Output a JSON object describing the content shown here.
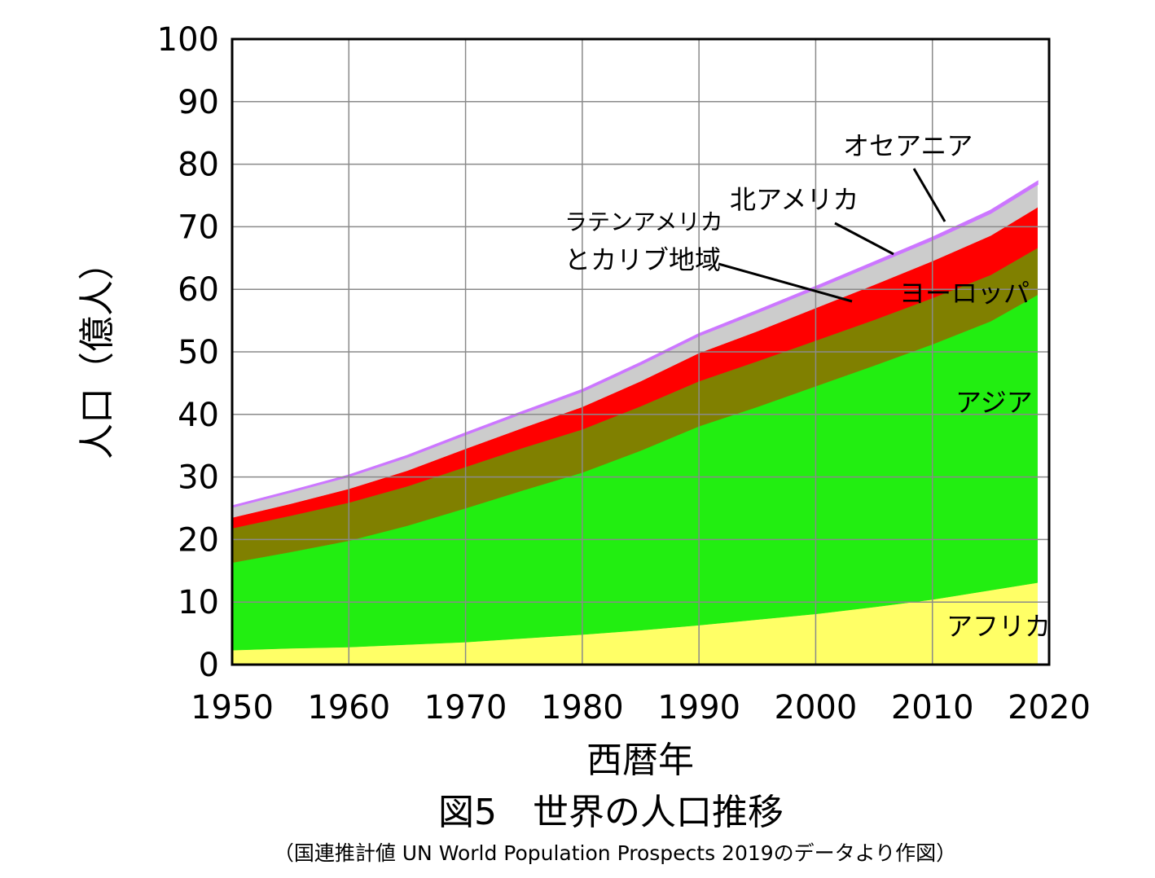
{
  "chart_data": {
    "type": "area",
    "stacked": true,
    "title": "図5　世界の人口推移",
    "subtitle": "（国連推計値 UN World Population Prospects 2019のデータより作図）",
    "xlabel": "西暦年",
    "ylabel": "人口（億人）",
    "xlim": [
      1950,
      2020
    ],
    "ylim": [
      0,
      100
    ],
    "xticks": [
      1950,
      1960,
      1970,
      1980,
      1990,
      2000,
      2010,
      2020
    ],
    "yticks": [
      0,
      10,
      20,
      30,
      40,
      50,
      60,
      70,
      80,
      90,
      100
    ],
    "grid": true,
    "x": [
      1950,
      1955,
      1960,
      1965,
      1970,
      1975,
      1980,
      1985,
      1990,
      1995,
      2000,
      2005,
      2010,
      2015,
      2019
    ],
    "series": [
      {
        "name": "アフリカ",
        "color": "#ffff66",
        "values": [
          2.3,
          2.6,
          2.8,
          3.2,
          3.6,
          4.2,
          4.8,
          5.5,
          6.3,
          7.2,
          8.1,
          9.2,
          10.4,
          11.9,
          13.1
        ]
      },
      {
        "name": "アジア",
        "color": "#22ee11",
        "values": [
          14.0,
          15.4,
          17.0,
          19.0,
          21.4,
          23.7,
          25.9,
          28.7,
          31.8,
          34.0,
          36.4,
          38.6,
          40.8,
          43.0,
          46.0
        ]
      },
      {
        "name": "ヨーロッパ",
        "color": "#808000",
        "values": [
          5.5,
          5.8,
          6.1,
          6.3,
          6.6,
          6.8,
          6.9,
          7.1,
          7.2,
          7.3,
          7.3,
          7.3,
          7.4,
          7.4,
          7.5
        ]
      },
      {
        "name": "ラテンアメリカとカリブ地域",
        "color": "#ff0000",
        "values": [
          1.7,
          1.9,
          2.2,
          2.5,
          2.9,
          3.2,
          3.6,
          4.0,
          4.5,
          4.8,
          5.2,
          5.6,
          5.9,
          6.3,
          6.5
        ]
      },
      {
        "name": "北アメリカ",
        "color": "#cccccc",
        "values": [
          1.7,
          1.9,
          2.0,
          2.2,
          2.3,
          2.4,
          2.5,
          2.7,
          2.8,
          3.0,
          3.1,
          3.3,
          3.4,
          3.6,
          3.7
        ]
      },
      {
        "name": "オセアニア",
        "color": "#cc77ff",
        "values": [
          0.13,
          0.14,
          0.16,
          0.18,
          0.2,
          0.21,
          0.23,
          0.25,
          0.27,
          0.29,
          0.31,
          0.34,
          0.37,
          0.4,
          0.42
        ]
      }
    ],
    "labels": {
      "oceania": "オセアニア",
      "north_america": "北アメリカ",
      "latin_america_line1": "ラテンアメリカ",
      "latin_america_line2": "とカリブ地域",
      "europe": "ヨーロッパ",
      "asia": "アジア",
      "africa": "アフリカ"
    }
  }
}
